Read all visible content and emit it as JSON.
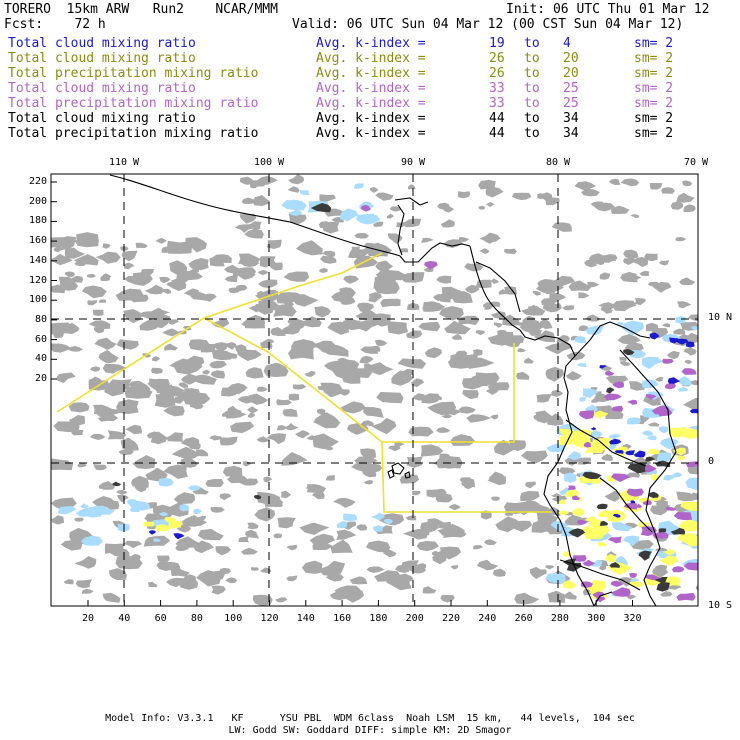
{
  "header": {
    "left1": "TORERO  15km ARW   Run2    NCAR/MMM",
    "right1": "Init: 06 UTC Thu 01 Mar 12",
    "left2": "Fcst:    72 h",
    "right2": "Valid: 06 UTC Sun 04 Mar 12 (00 CST Sun 04 Mar 12)"
  },
  "legend": [
    {
      "name": "Total cloud mixing ratio",
      "stat": "Avg. k-index =",
      "a": "19",
      "to": "to",
      "b": "4",
      "sm": "sm= 2",
      "color": "#1a1acc"
    },
    {
      "name": "Total cloud mixing ratio",
      "stat": "Avg. k-index =",
      "a": "26",
      "to": "to",
      "b": "20",
      "sm": "sm= 2",
      "color": "#8c8c14"
    },
    {
      "name": "Total precipitation mixing ratio",
      "stat": "Avg. k-index =",
      "a": "26",
      "to": "to",
      "b": "20",
      "sm": "sm= 2",
      "color": "#8c8c14"
    },
    {
      "name": "Total cloud mixing ratio",
      "stat": "Avg. k-index =",
      "a": "33",
      "to": "to",
      "b": "25",
      "sm": "sm= 2",
      "color": "#b066c8"
    },
    {
      "name": "Total precipitation mixing ratio",
      "stat": "Avg. k-index =",
      "a": "33",
      "to": "to",
      "b": "25",
      "sm": "sm= 2",
      "color": "#b066c8"
    },
    {
      "name": "Total cloud mixing ratio",
      "stat": "Avg. k-index =",
      "a": "44",
      "to": "to",
      "b": "34",
      "sm": "sm= 2",
      "color": "#000000"
    },
    {
      "name": "Total precipitation mixing ratio",
      "stat": "Avg. k-index =",
      "a": "44",
      "to": "to",
      "b": "34",
      "sm": "sm= 2",
      "color": "#000000"
    }
  ],
  "map": {
    "lon_labels": [
      "110 W",
      "100 W",
      "90 W",
      "80 W",
      "70 W"
    ],
    "lat_labels": [
      "10 N",
      "0",
      "10 S"
    ],
    "x_ticks": [
      "20",
      "40",
      "60",
      "80",
      "100",
      "120",
      "140",
      "160",
      "180",
      "200",
      "220",
      "240",
      "260",
      "280",
      "300",
      "320"
    ],
    "y_ticks": [
      "220",
      "200",
      "180",
      "160",
      "140",
      "120",
      "100",
      "80",
      "60",
      "40",
      "20"
    ],
    "colors": {
      "gray": "#a8a8a8",
      "dark": "#3a3a3a",
      "blue": "#1a1acc",
      "lightblue": "#aadcff",
      "yellow": "#ffff66",
      "purple": "#b066c8",
      "domain": "#f0e030"
    }
  },
  "footer": {
    "line1": "Model Info: V3.3.1   KF      YSU PBL  WDM 6class  Noah LSM  15 km,   44 levels,  104 sec",
    "line2": "LW: Godd SW: Goddard DIFF: simple KM: 2D Smagor"
  }
}
